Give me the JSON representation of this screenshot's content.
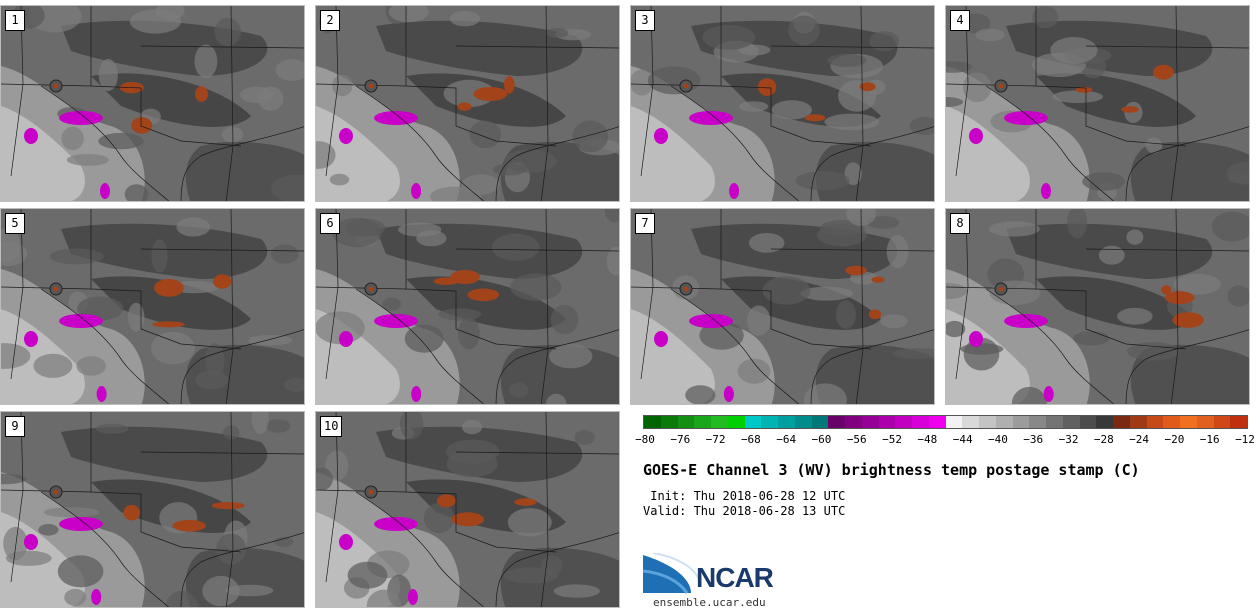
{
  "panels": [
    {
      "label": "1"
    },
    {
      "label": "2"
    },
    {
      "label": "3"
    },
    {
      "label": "4"
    },
    {
      "label": "5"
    },
    {
      "label": "6"
    },
    {
      "label": "7"
    },
    {
      "label": "8"
    },
    {
      "label": "9"
    },
    {
      "label": "10"
    }
  ],
  "colorbar": {
    "tick_labels": [
      "−80",
      "−76",
      "−72",
      "−68",
      "−64",
      "−60",
      "−56",
      "−52",
      "−48",
      "−44",
      "−40",
      "−36",
      "−32",
      "−28",
      "−24",
      "−20",
      "−16",
      "−12"
    ],
    "colors": [
      "#006400",
      "#0a7a0a",
      "#139013",
      "#1aa61a",
      "#22bb22",
      "#00d000",
      "#00c8c8",
      "#00b4b4",
      "#00a0a0",
      "#008c8c",
      "#007878",
      "#6a006a",
      "#800080",
      "#960096",
      "#ac00ac",
      "#c200c2",
      "#d800d8",
      "#ee00ee",
      "#f2f2f2",
      "#d9d9d9",
      "#c4c4c4",
      "#b0b0b0",
      "#9c9c9c",
      "#888888",
      "#747474",
      "#606060",
      "#4c4c4c",
      "#383838",
      "#7a2a10",
      "#a03a14",
      "#c64a18",
      "#e05a1c",
      "#f07020",
      "#e06020",
      "#d04818",
      "#c03010"
    ]
  },
  "title": "GOES-E Channel 3 (WV) brightness temp postage stamp (C)",
  "init": " Init: Thu 2018-06-28 12 UTC",
  "valid": "Valid: Thu 2018-06-28 13 UTC",
  "logo": {
    "name": "NCAR",
    "url": "ensemble.ucar.edu"
  }
}
